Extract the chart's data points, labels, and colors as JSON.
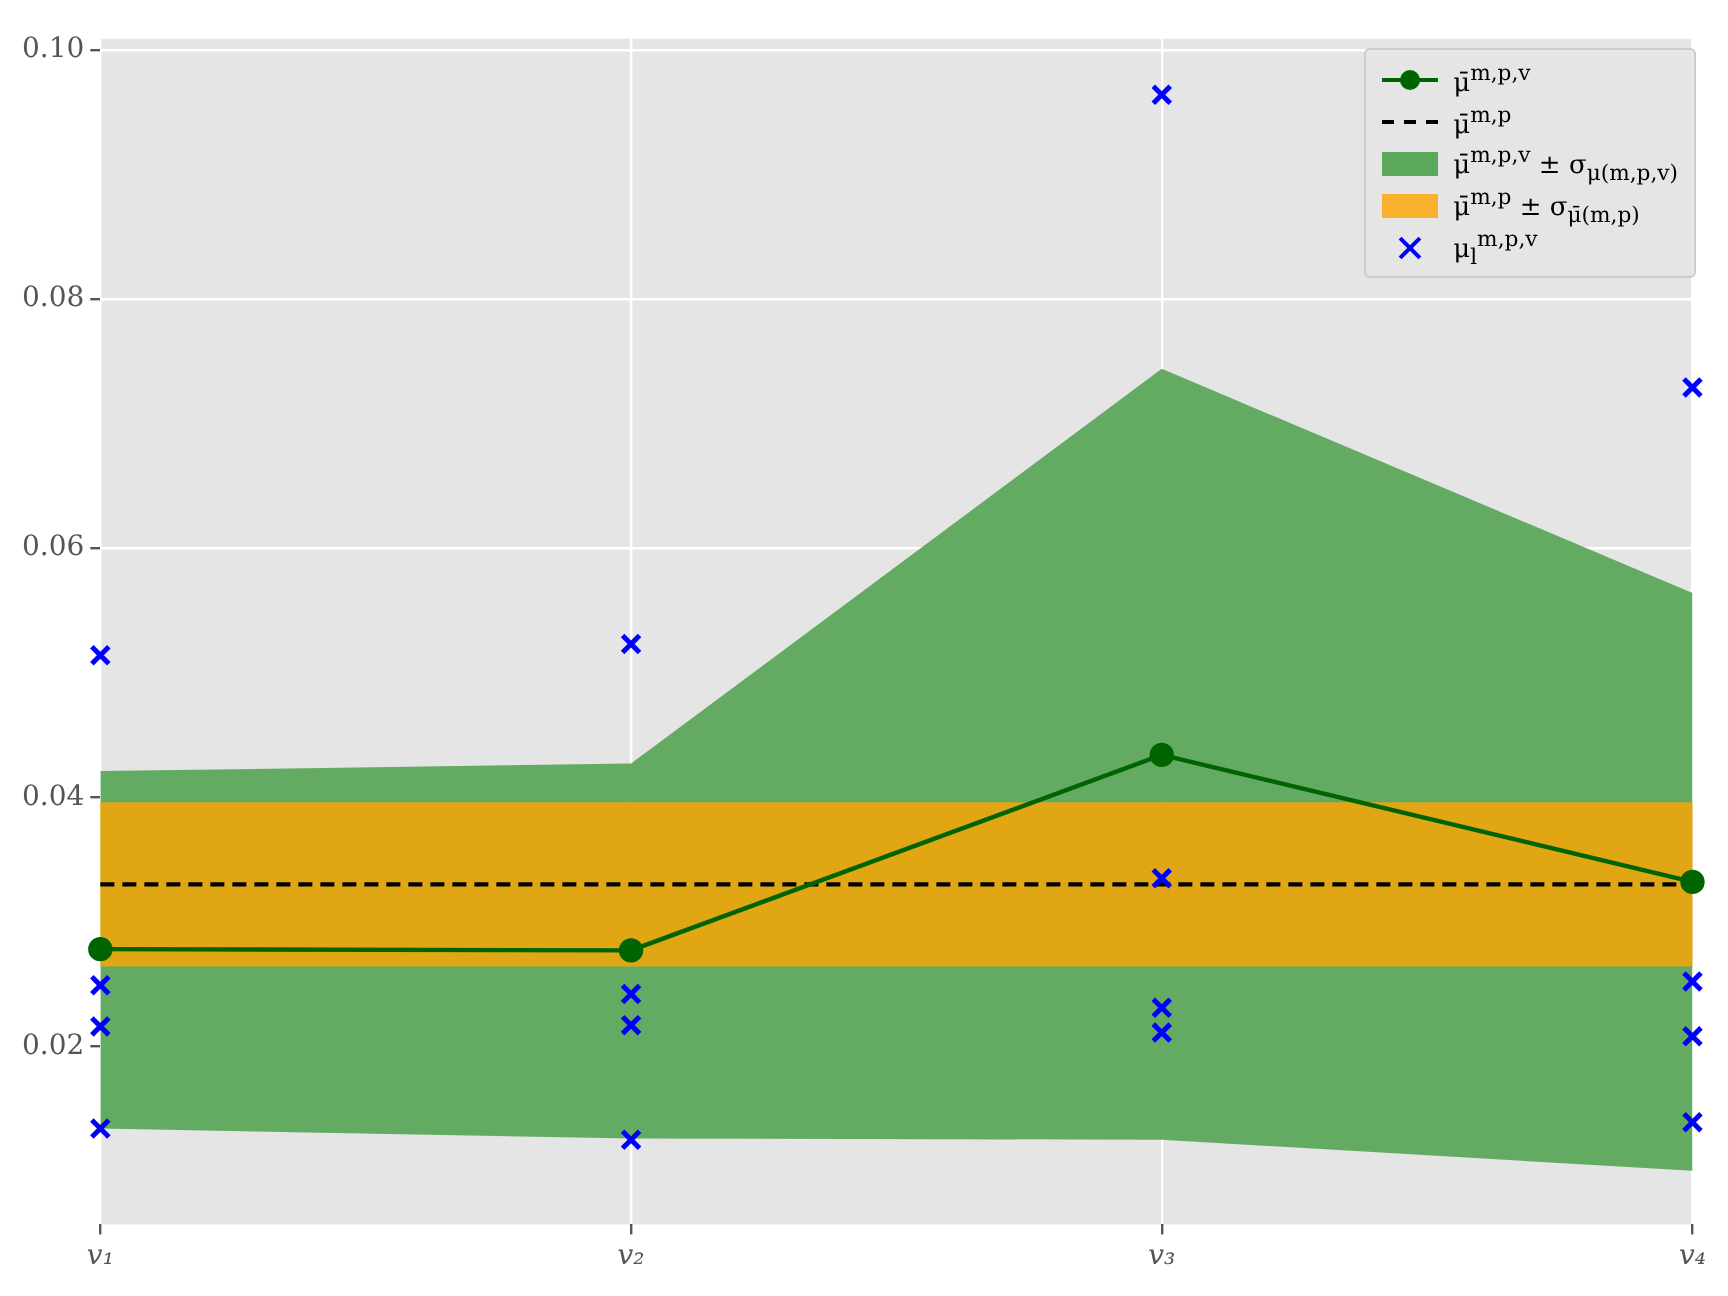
{
  "chart_data": {
    "type": "line",
    "categories": [
      "v₁",
      "v₂",
      "v₃",
      "v₄"
    ],
    "series": [
      {
        "name": "μ̄$^{m,p,v}$",
        "color": "#006400",
        "values": [
          0.0278,
          0.0277,
          0.0434,
          0.0332
        ],
        "marker": "circle",
        "lower": [
          0.0134,
          0.0126,
          0.0125,
          0.01
        ],
        "upper": [
          0.0421,
          0.0427,
          0.0744,
          0.0564
        ]
      },
      {
        "type": "scatter",
        "name": "μ$_{l}$$^{m,p,v}$",
        "color": "#0000ff",
        "marker": "cross",
        "x": [
          "v₁",
          "v₁",
          "v₁",
          "v₁",
          "v₂",
          "v₂",
          "v₂",
          "v₂",
          "v₃",
          "v₃",
          "v₃",
          "v₃",
          "v₄",
          "v₄",
          "v₄",
          "v₄"
        ],
        "values": [
          0.0514,
          0.0249,
          0.0216,
          0.0134,
          0.0523,
          0.0242,
          0.0217,
          0.0125,
          0.0964,
          0.0335,
          0.0231,
          0.0211,
          0.0729,
          0.0252,
          0.0208,
          0.0139
        ]
      }
    ],
    "ref_lines": [
      {
        "axis": "y",
        "value": 0.033,
        "label": "μ̄$^{m,p}$",
        "color": "#000000",
        "line_style": "dashed"
      }
    ],
    "bands": [
      {
        "axis": "y",
        "from": 0.0264,
        "to": 0.0396,
        "label": "μ̄$^{m,p}$ ± σ$_{μ̄(m,p)}$",
        "color": "#ffa500"
      }
    ],
    "ylim": [
      0.0057,
      0.1009
    ],
    "yticks": [
      0.02,
      0.04,
      0.06,
      0.08,
      {
        "value": 0.1,
        "label": "0.10"
      }
    ],
    "annotations": [
      "μ̄$^{m,p,v}$ ± σ$_{μ(m,p,v)}$"
    ],
    "grid": true,
    "legend": "top right"
  }
}
